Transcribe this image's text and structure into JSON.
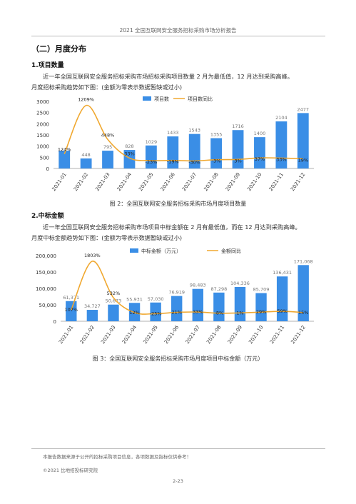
{
  "header": "2021 全国互联网安全服务招标采购市场分析报告",
  "section_title": "（二）月度分布",
  "sub1": {
    "title": "1.项目数量",
    "para_line1": "近一年全国互联网安全服务招标采购市场招标采购项目数量 2 月为最低值，12 月达到采购高峰。",
    "para_line2": "月度招标采购趋势如下图：(金额为零表示数据暂缺或过小)",
    "caption": "图 2：全国互联网安全服务招标采购市场月度项目数量"
  },
  "sub2": {
    "title": "2.中标金额",
    "para_line1": "近一年全国互联网安全服务招标采购市场项目中标金额在 2 月有最低值，而在 12 月达到采购高峰。",
    "para_line2": "月度中标金额趋势如下图：(金额为零表示数据暂缺或过小)",
    "caption": "图 3：全国互联网安全服务招标采购市场月度项目中标金额（万元）"
  },
  "footer": {
    "note": "本报告数据来源于公开的招标采购项目信息，各项数据及指标仅供参考！",
    "copyright": "©2021 比地招投标研究院",
    "page": "2-23"
  },
  "colors": {
    "bar": "#3a8ee6",
    "line": "#f0a830"
  },
  "chart_data": [
    {
      "type": "bar",
      "categories": [
        "2021-01",
        "2021-02",
        "2021-03",
        "2021-04",
        "2021-05",
        "2021-06",
        "2021-07",
        "2021-08",
        "2021-09",
        "2021-10",
        "2021-11",
        "2021-12"
      ],
      "series": [
        {
          "name": "项目数",
          "values": [
            795,
            448,
            795,
            828,
            1029,
            1433,
            1543,
            1355,
            1716,
            1400,
            2104,
            2477
          ],
          "labels": [
            "",
            "448",
            "795",
            "828",
            "1029",
            "1433",
            "1543",
            "1355",
            "1716",
            "1400",
            "2104",
            "2477"
          ]
        },
        {
          "name": "项目数同比",
          "values": [
            124,
            1209,
            448,
            33,
            -23,
            -19,
            -30,
            -3,
            3,
            37,
            33,
            19
          ],
          "labels": [
            "124%",
            "1209%",
            "448%",
            "33%",
            "-23%",
            "-19%",
            "-30%",
            "-3%",
            "3%",
            "37%",
            "33%",
            "19%"
          ]
        }
      ],
      "ylim": [
        0,
        3000
      ],
      "yticks": [
        "0",
        "500",
        "1000",
        "1500",
        "2000",
        "2500",
        "3000"
      ],
      "legend": "top-right"
    },
    {
      "type": "bar",
      "categories": [
        "2021-01",
        "2021-02",
        "2021-03",
        "2021-04",
        "2021-05",
        "2021-06",
        "2021-07",
        "2021-08",
        "2021-09",
        "2021-10",
        "2021-11",
        "2021-12"
      ],
      "series": [
        {
          "name": "中标金额（万元）",
          "values": [
            61371,
            34727,
            50673,
            55931,
            57030,
            76919,
            98483,
            87298,
            104336,
            85709,
            136431,
            171068
          ],
          "labels": [
            "61,371",
            "34,727",
            "50,673",
            "55,931",
            "57,030",
            "76,919",
            "98,483",
            "87,298",
            "104,336",
            "85,709",
            "136,431",
            "171,068"
          ]
        },
        {
          "name": "金额同比",
          "values": [
            107,
            1803,
            532,
            12,
            -25,
            21,
            33,
            -8,
            1,
            29,
            59,
            15
          ],
          "labels": [
            "107%",
            "1803%",
            "532%",
            "12%",
            "-25%",
            "21%",
            "33%",
            "-8%",
            "1%",
            "29%",
            "59%",
            "15%"
          ]
        }
      ],
      "ylim": [
        0,
        200000
      ],
      "yticks": [
        "0",
        "50,000",
        "100,000",
        "150,000",
        "200,000"
      ],
      "legend": "top-right"
    }
  ]
}
